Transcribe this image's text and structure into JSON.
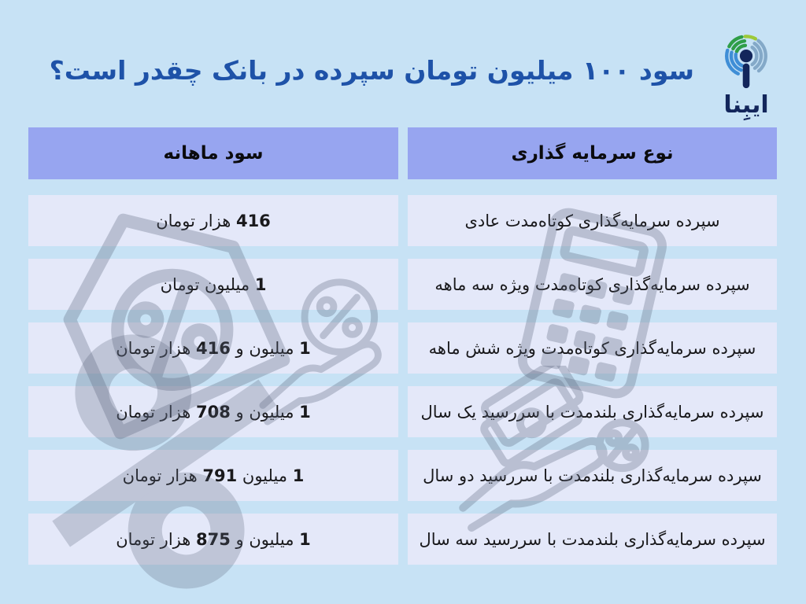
{
  "page": {
    "background": "#c7e2f5",
    "title": "سود ۱۰۰ میلیون تومان سپرده در بانک چقدر است؟",
    "title_color": "#1e52a8"
  },
  "logo": {
    "wordmark": "ایبِنا",
    "icon": "ibena-broadcast-waves-icon",
    "colors": {
      "navy": "#13265b",
      "blue": "#3f8ed6",
      "gray_blue": "#84a9c8",
      "green": "#2f9e47",
      "lime": "#9dc939"
    }
  },
  "table": {
    "header_bg": "#97a5f0",
    "row_bg": "#e4e8f9",
    "columns": [
      {
        "key": "type",
        "label": "نوع سرمایه گذاری"
      },
      {
        "key": "profit",
        "label": "سود ماهانه"
      }
    ],
    "rows": [
      {
        "type": "سپرده سرمایه‌گذاری کوتاه‌مدت عادی",
        "profit": [
          {
            "t": "416",
            "b": 1
          },
          {
            "t": " هزار تومان",
            "b": 0
          }
        ]
      },
      {
        "type": "سپرده سرمایه‌گذاری کوتاه‌مدت ویژه سه ماهه",
        "profit": [
          {
            "t": "1",
            "b": 1
          },
          {
            "t": " میلیون تومان",
            "b": 0
          }
        ]
      },
      {
        "type": "سپرده سرمایه‌گذاری کوتاه‌مدت ویژه شش ماهه",
        "profit": [
          {
            "t": "1",
            "b": 1
          },
          {
            "t": " میلیون و ",
            "b": 0
          },
          {
            "t": "416",
            "b": 1
          },
          {
            "t": " هزار تومان",
            "b": 0
          }
        ]
      },
      {
        "type": "سپرده سرمایه‌گذاری بلندمدت با سررسید یک سال",
        "profit": [
          {
            "t": "1",
            "b": 1
          },
          {
            "t": " میلیون و ",
            "b": 0
          },
          {
            "t": "708",
            "b": 1
          },
          {
            "t": " هزار تومان",
            "b": 0
          }
        ]
      },
      {
        "type": "سپرده سرمایه‌گذاری بلندمدت با سررسید دو سال",
        "profit": [
          {
            "t": "1",
            "b": 1
          },
          {
            "t": " میلیون ",
            "b": 0
          },
          {
            "t": "791",
            "b": 1
          },
          {
            "t": " هزار تومان",
            "b": 0
          }
        ]
      },
      {
        "type": "سپرده سرمایه‌گذاری بلندمدت با سررسید سه سال",
        "profit": [
          {
            "t": "1",
            "b": 1
          },
          {
            "t": " میلیون و ",
            "b": 0
          },
          {
            "t": "875",
            "b": 1
          },
          {
            "t": " هزار تومان",
            "b": 0
          }
        ]
      }
    ]
  },
  "watermarks": [
    "discount-tag-percent-icon",
    "hand-holding-percent-icon",
    "calculator-icon",
    "hand-holding-money-icon",
    "percent-sign-icon"
  ]
}
